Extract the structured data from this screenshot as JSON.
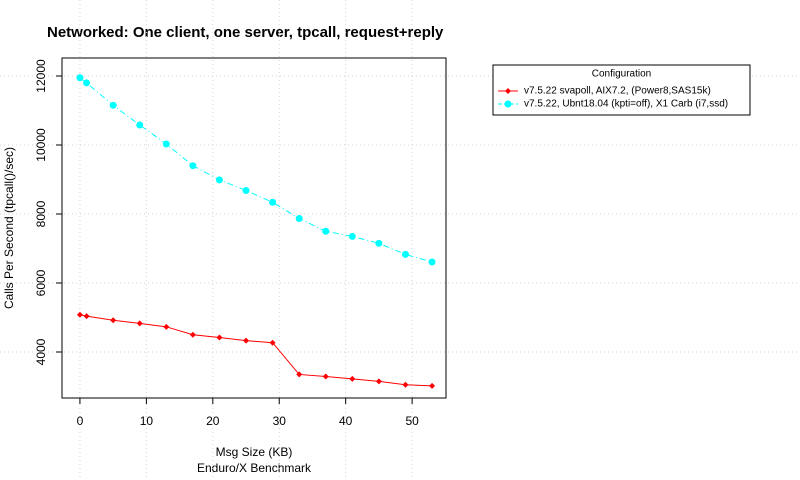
{
  "chart_data": {
    "type": "line",
    "title": "Networked: One client, one server, tpcall, request+reply",
    "x_label": "Msg Size (KB)",
    "subtitle": "Enduro/X Benchmark",
    "y_label": "Calls Per Second (tpcall()/sec)",
    "legend_title": "Configuration",
    "legend_position": "top-right",
    "grid": true,
    "x": [
      0,
      1,
      5,
      9,
      13,
      17,
      21,
      25,
      29,
      33,
      37,
      41,
      45,
      49,
      53
    ],
    "series": [
      {
        "name": "v7.5.22 svapoll, AIX7.2, (Power8,SAS15k)",
        "color": "#ff0000",
        "marker": "diamond",
        "line_style": "solid",
        "values": [
          5080,
          5040,
          4920,
          4830,
          4730,
          4500,
          4420,
          4330,
          4270,
          3350,
          3290,
          3220,
          3150,
          3050,
          3020
        ]
      },
      {
        "name": "v7.5.22, Ubnt18.04 (kpti=off), X1 Carb (i7,ssd)",
        "color": "#00ffff",
        "marker": "circle",
        "line_style": "dashed",
        "values": [
          11950,
          11800,
          11150,
          10580,
          10030,
          9400,
          8990,
          8680,
          8340,
          7870,
          7500,
          7350,
          7150,
          6830,
          6610
        ]
      }
    ],
    "xlim": [
      -2.7,
      55.1
    ],
    "ylim": [
      2667,
      12522
    ],
    "xticks": [
      0,
      10,
      20,
      30,
      40,
      50
    ],
    "yticks": [
      4000,
      6000,
      8000,
      10000,
      12000
    ]
  }
}
